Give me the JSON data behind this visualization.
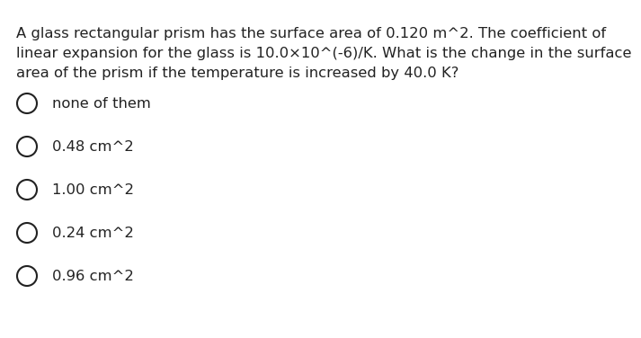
{
  "background_color": "#ffffff",
  "question_text_lines": [
    "A glass rectangular prism has the surface area of 0.120 m^2. The coefficient of",
    "linear expansion for the glass is 10.0×10^(-6)/K. What is the change in the surface",
    "area of the prism if the temperature is increased by 40.0 K?"
  ],
  "options": [
    "none of them",
    "0.48 cm^2",
    "1.00 cm^2",
    "0.24 cm^2",
    "0.96 cm^2"
  ],
  "text_color": "#222222",
  "font_size_question": 11.8,
  "font_size_options": 11.8,
  "fig_width": 7.13,
  "fig_height": 3.76
}
